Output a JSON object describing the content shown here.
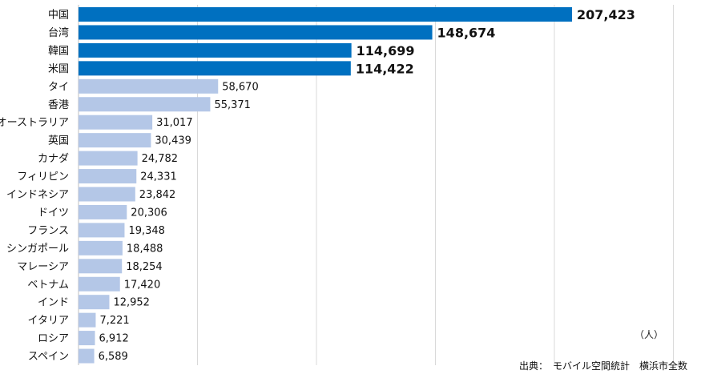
{
  "chart_data": {
    "type": "bar",
    "orientation": "horizontal",
    "unit": "（人）",
    "source": "出典：　モバイル空間統計　横浜市全数",
    "xlim": [
      0,
      260000
    ],
    "grid": true,
    "colors": {
      "highlight": "#0070C0",
      "normal": "#B4C7E7",
      "grid": "#d9d9d9",
      "axis": "#bfbfbf"
    },
    "highlight_count": 4,
    "categories": [
      "中国",
      "台湾",
      "韓国",
      "米国",
      "タイ",
      "香港",
      "オーストラリア",
      "英国",
      "カナダ",
      "フィリピン",
      "インドネシア",
      "ドイツ",
      "フランス",
      "シンガポール",
      "マレーシア",
      "ベトナム",
      "インド",
      "イタリア",
      "ロシア",
      "スペイン"
    ],
    "values": [
      207423,
      148674,
      114699,
      114422,
      58670,
      55371,
      31017,
      30439,
      24782,
      24331,
      23842,
      20306,
      19348,
      18488,
      18254,
      17420,
      12952,
      7221,
      6912,
      6589
    ],
    "value_labels": [
      "207,423",
      "148,674",
      "114,699",
      "114,422",
      "58,670",
      "55,371",
      "31,017",
      "30,439",
      "24,782",
      "24,331",
      "23,842",
      "20,306",
      "19,348",
      "18,488",
      "18,254",
      "17,420",
      "12,952",
      "7,221",
      "6,912",
      "6,589"
    ]
  }
}
